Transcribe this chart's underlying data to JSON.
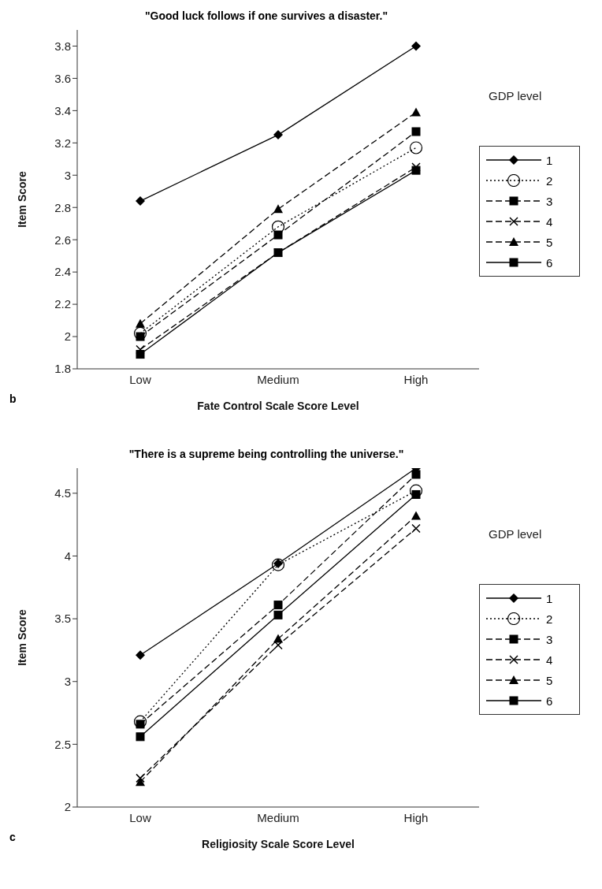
{
  "chart_data": [
    {
      "type": "line",
      "title": "\"Good luck follows if one survives a disaster.\"",
      "xlabel": "Fate Control Scale Score Level",
      "ylabel": "Item Score",
      "legend_title": "GDP level",
      "annotations": [
        "b"
      ],
      "categories": [
        "Low",
        "Medium",
        "High"
      ],
      "ylim": [
        1.8,
        3.9
      ],
      "yticks": [
        {
          "value": 1.8,
          "label": "1.8"
        },
        {
          "value": 2,
          "label": "2"
        },
        {
          "value": 2.2,
          "label": "2.2"
        },
        {
          "value": 2.4,
          "label": "2.4"
        },
        {
          "value": 2.6,
          "label": "2.6"
        },
        {
          "value": 2.8,
          "label": "2.8"
        },
        {
          "value": 3,
          "label": "3"
        },
        {
          "value": 3.2,
          "label": "3.2"
        },
        {
          "value": 3.4,
          "label": "3.4"
        },
        {
          "value": 3.6,
          "label": "3.6"
        },
        {
          "value": 3.8,
          "label": "3.8"
        }
      ],
      "grid": false,
      "legend": "right",
      "series": [
        {
          "name": "1",
          "color": "#000000",
          "marker": "diamond",
          "line_style": "solid",
          "values": [
            2.84,
            3.25,
            3.8
          ]
        },
        {
          "name": "2",
          "color": "#000000",
          "marker": "circle",
          "line_style": "dotted",
          "values": [
            2.02,
            2.68,
            3.17
          ]
        },
        {
          "name": "3",
          "color": "#000000",
          "marker": "square",
          "line_style": "dashed",
          "values": [
            2.0,
            2.63,
            3.27
          ]
        },
        {
          "name": "4",
          "color": "#000000",
          "marker": "cross",
          "line_style": "dashed",
          "values": [
            1.92,
            2.52,
            3.05
          ]
        },
        {
          "name": "5",
          "color": "#000000",
          "marker": "triangle",
          "line_style": "dashed",
          "values": [
            2.08,
            2.79,
            3.39
          ]
        },
        {
          "name": "6",
          "color": "#000000",
          "marker": "square",
          "line_style": "solid",
          "values": [
            1.89,
            2.52,
            3.03
          ]
        }
      ]
    },
    {
      "type": "line",
      "title": "\"There is a supreme being controlling the universe.\"",
      "xlabel": "Religiosity Scale Score Level",
      "ylabel": "Item Score",
      "legend_title": "GDP level",
      "annotations": [
        "c"
      ],
      "categories": [
        "Low",
        "Medium",
        "High"
      ],
      "ylim": [
        2,
        4.7
      ],
      "yticks": [
        2,
        2.5,
        3,
        3.5,
        4,
        4.5
      ],
      "grid": false,
      "legend": "right",
      "series": [
        {
          "name": "1",
          "color": "#000000",
          "marker": "diamond",
          "line_style": "solid",
          "values": [
            3.21,
            3.94,
            4.7
          ]
        },
        {
          "name": "2",
          "color": "#000000",
          "marker": "circle",
          "line_style": "dotted",
          "values": [
            2.68,
            3.93,
            4.52
          ]
        },
        {
          "name": "3",
          "color": "#000000",
          "marker": "square",
          "line_style": "dashed",
          "values": [
            2.66,
            3.61,
            4.65
          ]
        },
        {
          "name": "4",
          "color": "#000000",
          "marker": "cross",
          "line_style": "dashed",
          "values": [
            2.23,
            3.29,
            4.22
          ]
        },
        {
          "name": "5",
          "color": "#000000",
          "marker": "triangle",
          "line_style": "dashed",
          "values": [
            2.2,
            3.34,
            4.32
          ]
        },
        {
          "name": "6",
          "color": "#000000",
          "marker": "square",
          "line_style": "solid",
          "values": [
            2.56,
            3.53,
            4.49
          ]
        }
      ]
    }
  ]
}
